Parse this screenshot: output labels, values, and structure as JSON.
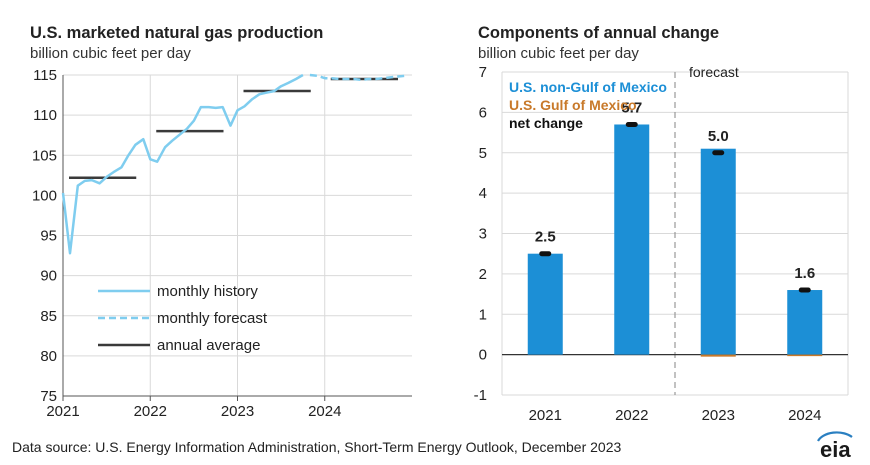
{
  "source": "Data source: U.S. Energy Information Administration, Short-Term Energy Outlook, December 2023",
  "logo_text": "eia",
  "colors": {
    "history": "#7fcdef",
    "average": "#3a3a3a",
    "bar": "#1c8fd6",
    "gulf": "#c8792a",
    "net": "#111111",
    "grid": "#d9d9d9",
    "forecast_line": "#999999"
  },
  "chart_data": [
    {
      "type": "line",
      "title": "U.S. marketed natural gas production",
      "subtitle": "billion cubic feet per day",
      "ylim": [
        75,
        115
      ],
      "yticks": [
        75,
        80,
        85,
        90,
        95,
        100,
        105,
        110,
        115
      ],
      "xlim": [
        2021,
        2025
      ],
      "xticks": [
        2021,
        2022,
        2023,
        2024
      ],
      "legend": [
        "monthly history",
        "monthly forecast",
        "annual average"
      ],
      "legend_placement": "bottom-left",
      "series": [
        {
          "name": "monthly history",
          "style": "solid",
          "x": [
            2021.0,
            2021.08,
            2021.17,
            2021.25,
            2021.33,
            2021.42,
            2021.5,
            2021.58,
            2021.67,
            2021.75,
            2021.83,
            2021.92,
            2022.0,
            2022.08,
            2022.17,
            2022.25,
            2022.33,
            2022.42,
            2022.5,
            2022.58,
            2022.67,
            2022.75,
            2022.83,
            2022.92,
            2023.0,
            2023.08,
            2023.17,
            2023.25,
            2023.33,
            2023.42,
            2023.5,
            2023.58,
            2023.67,
            2023.75
          ],
          "y": [
            100.3,
            92.8,
            101.2,
            101.8,
            101.9,
            101.5,
            102.3,
            102.9,
            103.5,
            105.0,
            106.3,
            107.0,
            104.5,
            104.2,
            106.0,
            106.8,
            107.5,
            108.3,
            109.3,
            111.0,
            111.0,
            110.9,
            111.0,
            108.7,
            110.6,
            111.1,
            112.0,
            112.6,
            112.8,
            113.0,
            113.6,
            114.0,
            114.5,
            115.0
          ]
        },
        {
          "name": "monthly forecast",
          "style": "dashed",
          "x": [
            2023.83,
            2023.92,
            2024.0,
            2024.08,
            2024.17,
            2024.25,
            2024.33,
            2024.42,
            2024.5,
            2024.58,
            2024.67,
            2024.75,
            2024.83,
            2024.92
          ],
          "y": [
            115.0,
            114.9,
            114.6,
            114.6,
            114.5,
            114.5,
            114.5,
            114.4,
            114.5,
            114.5,
            114.6,
            114.7,
            114.8,
            114.9
          ]
        }
      ],
      "annual_average": [
        {
          "year": 2021,
          "value": 102.2
        },
        {
          "year": 2022,
          "value": 108.0
        },
        {
          "year": 2023,
          "value": 113.0
        },
        {
          "year": 2024,
          "value": 114.5
        }
      ]
    },
    {
      "type": "bar",
      "title": "Components of annual change",
      "subtitle": "billion cubic feet per day",
      "categories": [
        "2021",
        "2022",
        "2023",
        "2024"
      ],
      "ylim": [
        -1,
        7
      ],
      "yticks": [
        -1,
        0,
        1,
        2,
        3,
        4,
        5,
        6,
        7
      ],
      "forecast_label": "forecast",
      "forecast_start": "2023",
      "legend": [
        "U.S. non-Gulf of Mexico",
        "U.S. Gulf of Mexico",
        "net change"
      ],
      "legend_placement": "top-left",
      "series": [
        {
          "name": "U.S. non-Gulf of Mexico",
          "values": [
            2.5,
            5.7,
            5.1,
            1.6
          ]
        },
        {
          "name": "U.S. Gulf of Mexico",
          "values": [
            0.0,
            0.0,
            -0.05,
            -0.02
          ]
        },
        {
          "name": "net change",
          "values": [
            2.5,
            5.7,
            5.0,
            1.6
          ]
        }
      ],
      "data_labels": [
        "2.5",
        "5.7",
        "5.0",
        "1.6"
      ]
    }
  ]
}
